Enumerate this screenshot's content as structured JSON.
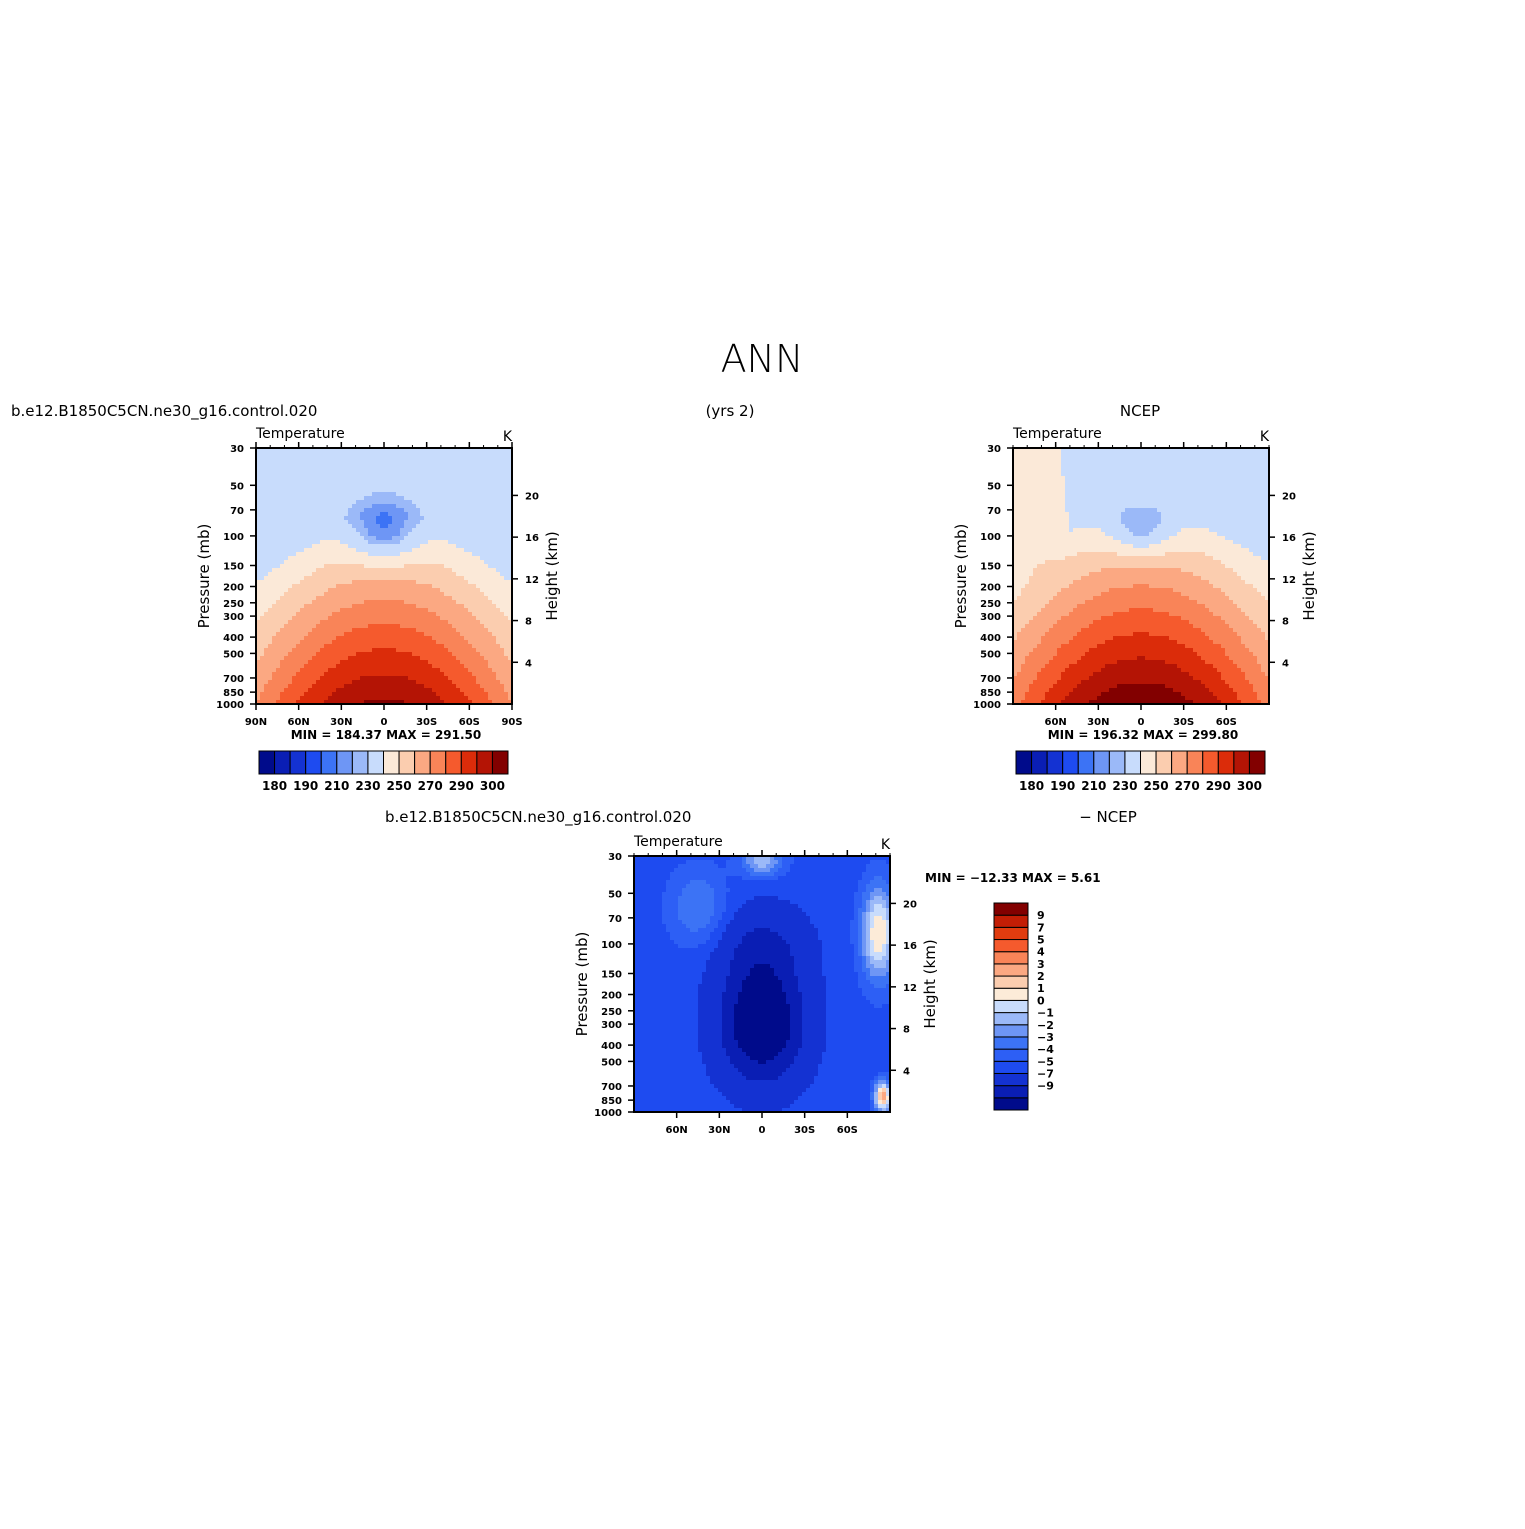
{
  "figure": {
    "title": "ANN",
    "top_left_label": "b.e12.B1850C5CN.ne30_g16.control.020",
    "top_center_label": "(yrs 2)",
    "top_right_label": "NCEP",
    "bottom_left_label": "b.e12.B1850C5CN.ne30_g16.control.020",
    "bottom_right_label": "− NCEP"
  },
  "colors": {
    "temperature_scale": [
      "#000b8b",
      "#0a1eb4",
      "#1432d2",
      "#1e4bf0",
      "#3c73f5",
      "#6e96f5",
      "#9bb9f8",
      "#c8dcfc",
      "#fbe9d8",
      "#fbcdaf",
      "#fba882",
      "#f98458",
      "#f55a2d",
      "#db2c0a",
      "#b41405",
      "#820000"
    ],
    "difference_scale": [
      "#000b8b",
      "#0a1eb4",
      "#1432d2",
      "#1e4bf0",
      "#2d5ff5",
      "#3c73f5",
      "#6e96f5",
      "#9bb9f8",
      "#c8dcfc",
      "#fcebd8",
      "#fbcdaf",
      "#fba882",
      "#f98458",
      "#f55a2d",
      "#e13c0f",
      "#c31e05",
      "#820000"
    ]
  },
  "chart_data": [
    {
      "id": "model",
      "type": "heatmap",
      "title": "Temperature",
      "units": "K",
      "ylabel": "Pressure (mb)",
      "ylabel_right": "Height (km)",
      "x_ticks": [
        "90N",
        "60N",
        "30N",
        "0",
        "30S",
        "60S",
        "90S"
      ],
      "x_values": [
        90,
        60,
        30,
        0,
        -30,
        -60,
        -90
      ],
      "xlim": [
        90,
        -90
      ],
      "y_ticks": [
        30,
        50,
        70,
        100,
        150,
        200,
        250,
        300,
        400,
        500,
        700,
        850,
        1000
      ],
      "y_scale": "log",
      "ylim": [
        1000,
        30
      ],
      "height_ticks_km": [
        4,
        8,
        12,
        16,
        20
      ],
      "stats": "MIN =  184.37   MAX =  291.50",
      "min": 184.37,
      "max": 291.5,
      "colorbar_levels": [
        180,
        185,
        190,
        195,
        200,
        205,
        210,
        220,
        230,
        240,
        250,
        260,
        270,
        280,
        290,
        300
      ],
      "colorbar_labels": [
        "180",
        "190",
        "210",
        "230",
        "250",
        "270",
        "290",
        "300"
      ]
    },
    {
      "id": "ncep",
      "type": "heatmap",
      "title": "Temperature",
      "units": "K",
      "ylabel": "Pressure (mb)",
      "ylabel_right": "Height (km)",
      "x_ticks": [
        "60N",
        "30N",
        "0",
        "30S",
        "60S"
      ],
      "x_values": [
        60,
        30,
        0,
        -30,
        -60
      ],
      "xlim": [
        90,
        -90
      ],
      "y_ticks": [
        30,
        50,
        70,
        100,
        150,
        200,
        250,
        300,
        400,
        500,
        700,
        850,
        1000
      ],
      "y_scale": "log",
      "ylim": [
        1000,
        30
      ],
      "height_ticks_km": [
        4,
        8,
        12,
        16,
        20
      ],
      "stats": "MIN =  196.32   MAX =  299.80",
      "min": 196.32,
      "max": 299.8,
      "colorbar_levels": [
        180,
        185,
        190,
        195,
        200,
        205,
        210,
        220,
        230,
        240,
        250,
        260,
        270,
        280,
        290,
        300
      ],
      "colorbar_labels": [
        "180",
        "190",
        "210",
        "230",
        "250",
        "270",
        "290",
        "300"
      ]
    },
    {
      "id": "difference",
      "type": "heatmap",
      "title": "Temperature",
      "units": "K",
      "ylabel": "Pressure (mb)",
      "ylabel_right": "Height (km)",
      "x_ticks": [
        "60N",
        "30N",
        "0",
        "30S",
        "60S"
      ],
      "x_values": [
        60,
        30,
        0,
        -30,
        -60
      ],
      "xlim": [
        90,
        -90
      ],
      "y_ticks": [
        30,
        50,
        70,
        100,
        150,
        200,
        250,
        300,
        400,
        500,
        700,
        850,
        1000
      ],
      "y_scale": "log",
      "ylim": [
        1000,
        30
      ],
      "height_ticks_km": [
        4,
        8,
        12,
        16,
        20
      ],
      "stats": "MIN = −12.33   MAX =    5.61",
      "min": -12.33,
      "max": 5.61,
      "colorbar_labels": [
        "9",
        "7",
        "5",
        "4",
        "3",
        "2",
        "1",
        "0",
        "−1",
        "−2",
        "−3",
        "−4",
        "−5",
        "−7",
        "−9"
      ]
    }
  ]
}
